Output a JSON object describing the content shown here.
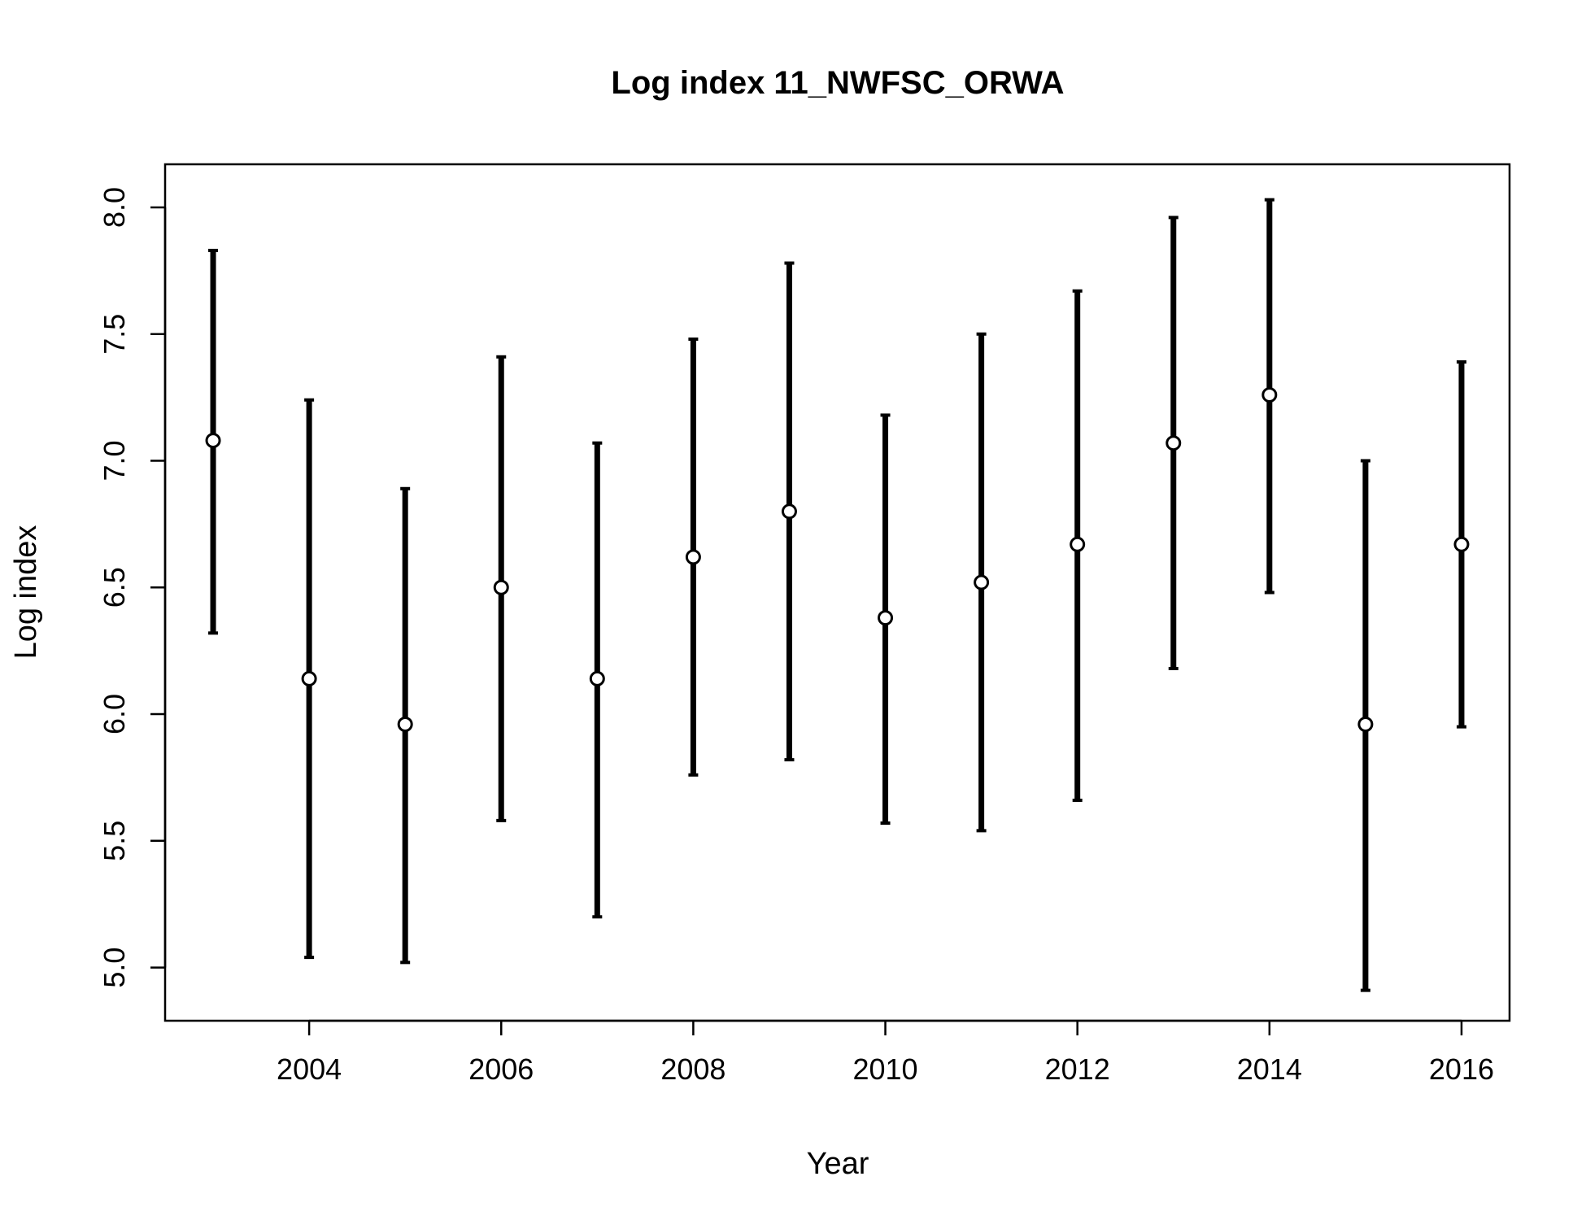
{
  "chart_data": {
    "type": "scatter",
    "title": "Log index 11_NWFSC_ORWA",
    "xlabel": "Year",
    "ylabel": "Log index",
    "xlim": [
      2002.5,
      2016.5
    ],
    "ylim": [
      4.79,
      8.17
    ],
    "x_ticks": [
      2004,
      2006,
      2008,
      2010,
      2012,
      2014,
      2016
    ],
    "x_tick_labels": [
      "2004",
      "2006",
      "2008",
      "2010",
      "2012",
      "2014",
      "2016"
    ],
    "y_ticks": [
      5.0,
      5.5,
      6.0,
      6.5,
      7.0,
      7.5,
      8.0
    ],
    "y_tick_labels": [
      "5.0",
      "5.5",
      "6.0",
      "6.5",
      "7.0",
      "7.5",
      "8.0"
    ],
    "grid": false,
    "colors": {
      "bars": "#000000",
      "point_fill": "#ffffff",
      "point_stroke": "#000000"
    },
    "series": [
      {
        "x": [
          2003,
          2004,
          2005,
          2006,
          2007,
          2008,
          2009,
          2010,
          2011,
          2012,
          2013,
          2014,
          2015,
          2016
        ],
        "y": [
          7.08,
          6.14,
          5.96,
          6.5,
          6.14,
          6.62,
          6.8,
          6.38,
          6.52,
          6.67,
          7.07,
          7.26,
          5.96,
          6.67
        ],
        "lower": [
          6.32,
          5.04,
          5.02,
          5.58,
          5.2,
          5.76,
          5.82,
          5.57,
          5.54,
          5.66,
          6.18,
          6.48,
          4.91,
          5.95
        ],
        "upper": [
          7.83,
          7.24,
          6.89,
          7.41,
          7.07,
          7.48,
          7.78,
          7.18,
          7.5,
          7.67,
          7.96,
          8.03,
          7.0,
          7.39
        ]
      }
    ]
  }
}
